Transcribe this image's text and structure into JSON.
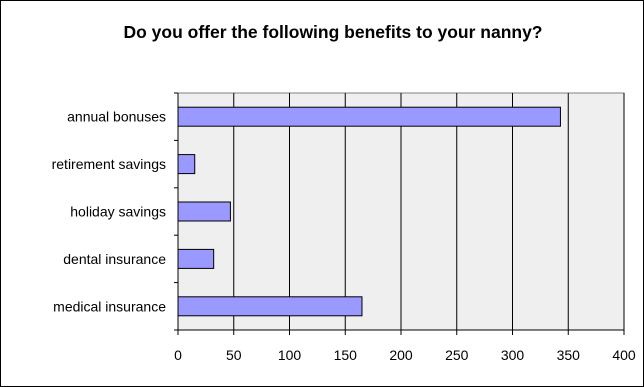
{
  "chart_data": {
    "type": "bar",
    "orientation": "horizontal",
    "title": "Do you offer the following benefits to your nanny?",
    "categories": [
      "annual bonuses",
      "retirement savings",
      "holiday savings",
      "dental insurance",
      "medical insurance"
    ],
    "values": [
      343,
      15,
      47,
      32,
      165
    ],
    "xlim": [
      0,
      400
    ],
    "xticks": [
      0,
      50,
      100,
      150,
      200,
      250,
      300,
      350,
      400
    ],
    "grid": true,
    "legend": "none",
    "bar_color": "#9999ff",
    "plot_background": "#efefef"
  }
}
